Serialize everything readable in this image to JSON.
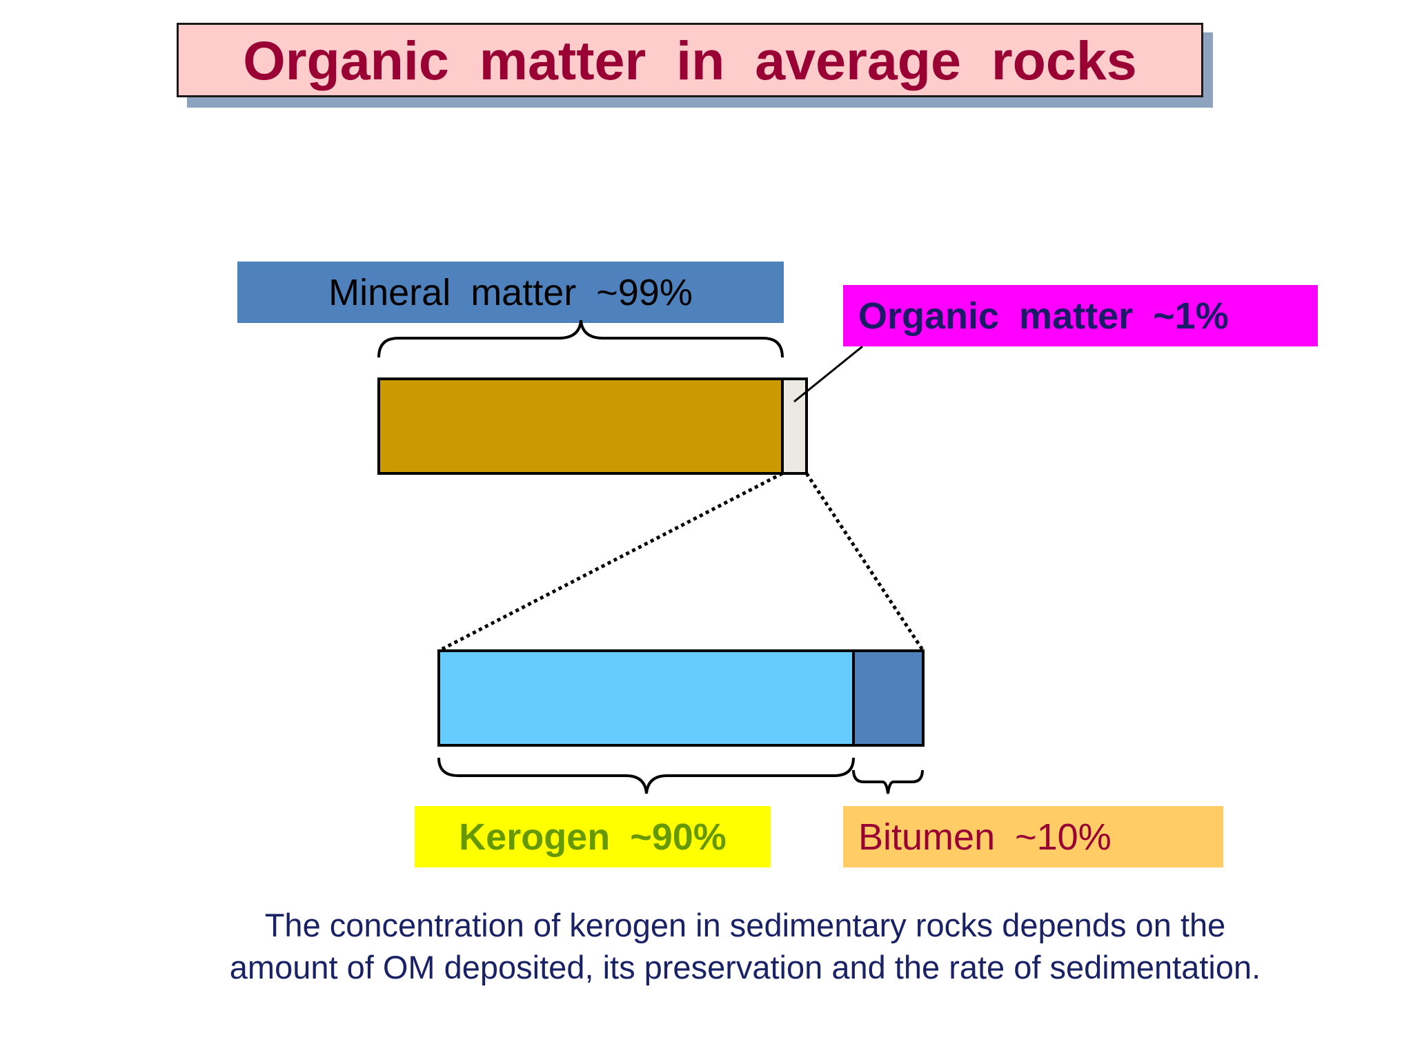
{
  "title": "Organic matter in average rocks",
  "labels": {
    "mineral": "Mineral matter ~99%",
    "organic": "Organic matter ~1%",
    "kerogen": "Kerogen ~90%",
    "bitumen": "Bitumen ~10%"
  },
  "colors": {
    "title_fill": "#ffcccc",
    "title_text": "#990033",
    "title_shadow": "#8ea3bf",
    "mineral_label_fill": "#4f81bd",
    "organic_label_fill": "#ff00ff",
    "kerogen_label_fill": "#ffff00",
    "bitumen_label_fill": "#ffcc66",
    "mineral_bar": "#cc9900",
    "organic_bar": "#ebe9e1",
    "kerogen_bar": "#66ccff",
    "bitumen_bar": "#4f81bd"
  },
  "composition": {
    "rock": [
      {
        "component": "mineral",
        "fraction": 0.99
      },
      {
        "component": "organic",
        "fraction": 0.01
      }
    ],
    "organic_matter": [
      {
        "component": "kerogen",
        "fraction": 0.9
      },
      {
        "component": "bitumen",
        "fraction": 0.1
      }
    ]
  },
  "caption": {
    "line1": "The concentration of kerogen in sedimentary rocks depends on the",
    "line2": "amount of OM deposited, its preservation and the rate of sedimentation."
  }
}
